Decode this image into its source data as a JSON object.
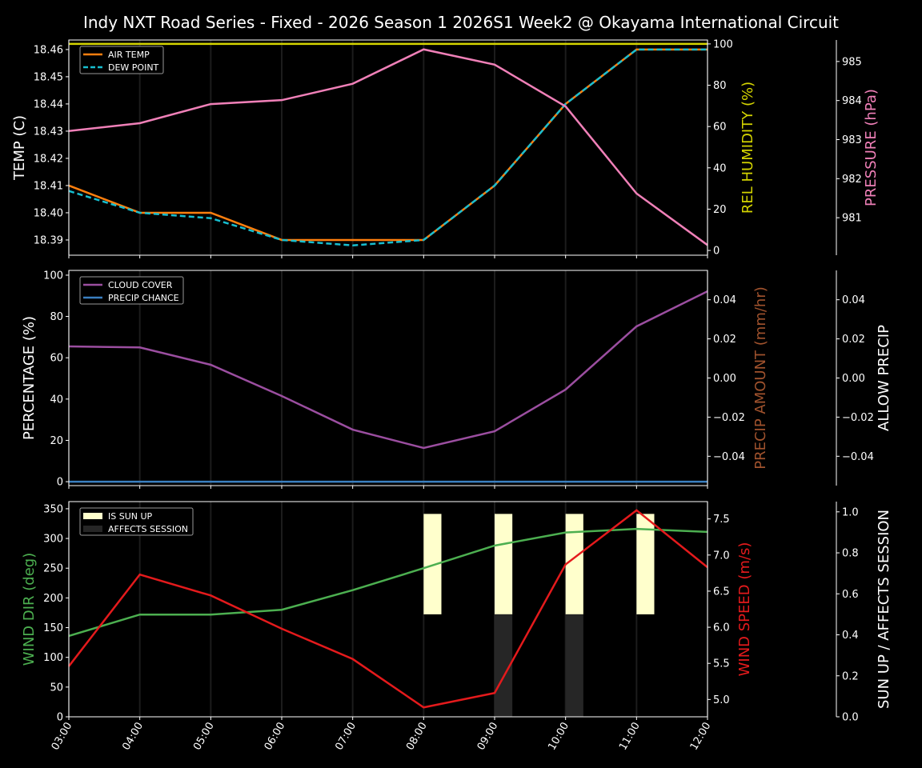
{
  "title": "Indy NXT Road Series - Fixed - 2026 Season 1 2026S1 Week2 @ Okayama International Circuit",
  "chart_data": [
    {
      "type": "line",
      "x": [
        "03:00",
        "04:00",
        "05:00",
        "06:00",
        "07:00",
        "08:00",
        "09:00",
        "10:00",
        "11:00",
        "12:00"
      ],
      "axes": {
        "left": {
          "label": "TEMP (C)",
          "color": "#ffffff",
          "ylim": [
            18.3844,
            18.4635
          ],
          "ticks": [
            18.39,
            18.4,
            18.41,
            18.42,
            18.43,
            18.44,
            18.45,
            18.46
          ],
          "tick_labels": [
            "18.39",
            "18.40",
            "18.41",
            "18.42",
            "18.43",
            "18.44",
            "18.45",
            "18.46"
          ]
        },
        "right1": {
          "label": "REL HUMIDITY (%)",
          "color": "#d4d400",
          "ylim": [
            -2.3,
            101.9
          ],
          "ticks": [
            0,
            20,
            40,
            60,
            80,
            100
          ],
          "tick_labels": [
            "0",
            "20",
            "40",
            "60",
            "80",
            "100"
          ]
        },
        "right2": {
          "label": "PRESSURE (hPa)",
          "color": "#f080b8",
          "ylim": [
            980.04,
            985.55
          ],
          "ticks": [
            981,
            982,
            983,
            984,
            985
          ],
          "tick_labels": [
            "981",
            "982",
            "983",
            "984",
            "985"
          ]
        }
      },
      "series": [
        {
          "name": "AIR TEMP",
          "axis": "left",
          "color": "#ff7f0e",
          "dash": false,
          "values": [
            18.41,
            18.4,
            18.4,
            18.39,
            18.39,
            18.39,
            18.41,
            18.44,
            18.46,
            18.46
          ]
        },
        {
          "name": "DEW POINT",
          "axis": "left",
          "color": "#17becf",
          "dash": true,
          "values": [
            18.408,
            18.4,
            18.398,
            18.39,
            18.388,
            18.39,
            18.41,
            18.44,
            18.46,
            18.46
          ]
        },
        {
          "axis": "right1",
          "color": "#d4d400",
          "dash": false,
          "values": [
            100,
            100,
            100,
            100,
            100,
            100,
            100,
            100,
            100,
            100
          ]
        },
        {
          "axis": "right2",
          "color": "#f080b8",
          "dash": false,
          "values": [
            983.22,
            983.42,
            983.91,
            984.01,
            984.43,
            985.31,
            984.92,
            983.85,
            981.62,
            980.3
          ]
        }
      ],
      "legend": [
        "AIR TEMP",
        "DEW POINT"
      ],
      "legend_placement": "top-left",
      "grid": "vertical"
    },
    {
      "type": "line",
      "x": [
        "03:00",
        "04:00",
        "05:00",
        "06:00",
        "07:00",
        "08:00",
        "09:00",
        "10:00",
        "11:00",
        "12:00"
      ],
      "axes": {
        "left": {
          "label": "PERCENTAGE (%)",
          "color": "#ffffff",
          "ylim": [
            -1.9,
            102.3
          ],
          "ticks": [
            0,
            20,
            40,
            60,
            80,
            100
          ],
          "tick_labels": [
            "0",
            "20",
            "40",
            "60",
            "80",
            "100"
          ]
        },
        "right1": {
          "label": "PRECIP AMOUNT (mm/hr)",
          "color": "#a0522d",
          "ylim": [
            -0.055,
            0.055
          ],
          "ticks": [
            -0.04,
            -0.02,
            0,
            0.02,
            0.04
          ],
          "tick_labels": [
            "−0.04",
            "−0.02",
            "0.00",
            "0.02",
            "0.04"
          ]
        },
        "right2": {
          "label": "ALLOW PRECIP",
          "color": "#ffffff",
          "ylim": [
            -0.055,
            0.055
          ],
          "ticks": [
            -0.04,
            -0.02,
            0,
            0.02,
            0.04
          ],
          "tick_labels": [
            "−0.04",
            "−0.02",
            "0.00",
            "0.02",
            "0.04"
          ]
        }
      },
      "series": [
        {
          "name": "CLOUD COVER",
          "axis": "left",
          "color": "#9b4ea0",
          "dash": false,
          "values": [
            65.5,
            65,
            56.6,
            41.5,
            25.2,
            16.3,
            24.4,
            44.6,
            75.2,
            92.2
          ]
        },
        {
          "name": "PRECIP CHANCE",
          "axis": "left",
          "color": "#3a7fc0",
          "dash": false,
          "values": [
            0,
            0,
            0,
            0,
            0,
            0,
            0,
            0,
            0,
            0
          ]
        }
      ],
      "legend": [
        "CLOUD COVER",
        "PRECIP CHANCE"
      ],
      "legend_placement": "top-left",
      "grid": "vertical"
    },
    {
      "type": "line",
      "x": [
        "03:00",
        "04:00",
        "05:00",
        "06:00",
        "07:00",
        "08:00",
        "09:00",
        "10:00",
        "11:00",
        "12:00"
      ],
      "axes": {
        "left": {
          "label": "WIND DIR (deg)",
          "color": "#4caf50",
          "ylim": [
            0,
            362
          ],
          "ticks": [
            0,
            50,
            100,
            150,
            200,
            250,
            300,
            350
          ],
          "tick_labels": [
            "0",
            "50",
            "100",
            "150",
            "200",
            "250",
            "300",
            "350"
          ]
        },
        "right1": {
          "label": "WIND SPEED (m/s)",
          "color": "#e41a1c",
          "ylim": [
            4.76,
            7.74
          ],
          "ticks": [
            5.0,
            5.5,
            6.0,
            6.5,
            7.0,
            7.5
          ],
          "tick_labels": [
            "5.0",
            "5.5",
            "6.0",
            "6.5",
            "7.0",
            "7.5"
          ]
        },
        "right2": {
          "label": "SUN UP / AFFECTS SESSION",
          "color": "#ffffff",
          "ylim": [
            0,
            1.05
          ],
          "ticks": [
            0,
            0.2,
            0.4,
            0.6,
            0.8,
            1.0
          ],
          "tick_labels": [
            "0.0",
            "0.2",
            "0.4",
            "0.6",
            "0.8",
            "1.0"
          ]
        }
      },
      "series": [
        {
          "axis": "left",
          "color": "#4caf50",
          "dash": false,
          "values": [
            136,
            172,
            172,
            180,
            213,
            250,
            288,
            310,
            316,
            311
          ]
        },
        {
          "axis": "right1",
          "color": "#e41a1c",
          "dash": false,
          "values": [
            5.46,
            6.73,
            6.44,
            5.98,
            5.56,
            4.89,
            5.09,
            6.87,
            7.62,
            6.83
          ]
        }
      ],
      "bars": [
        {
          "name": "IS SUN UP",
          "axis": "right2",
          "color": "#ffffcc",
          "x": [
            "08:00",
            "09:00",
            "10:00",
            "11:00"
          ],
          "bottom": 0.5,
          "top": 0.99
        },
        {
          "name": "AFFECTS SESSION",
          "axis": "right2",
          "color": "#262626",
          "x": [
            "09:00",
            "10:00"
          ],
          "bottom": 0,
          "top": 0.5
        }
      ],
      "legend": [
        "IS SUN UP",
        "AFFECTS SESSION"
      ],
      "legend_placement": "top-left",
      "grid": "vertical"
    }
  ]
}
